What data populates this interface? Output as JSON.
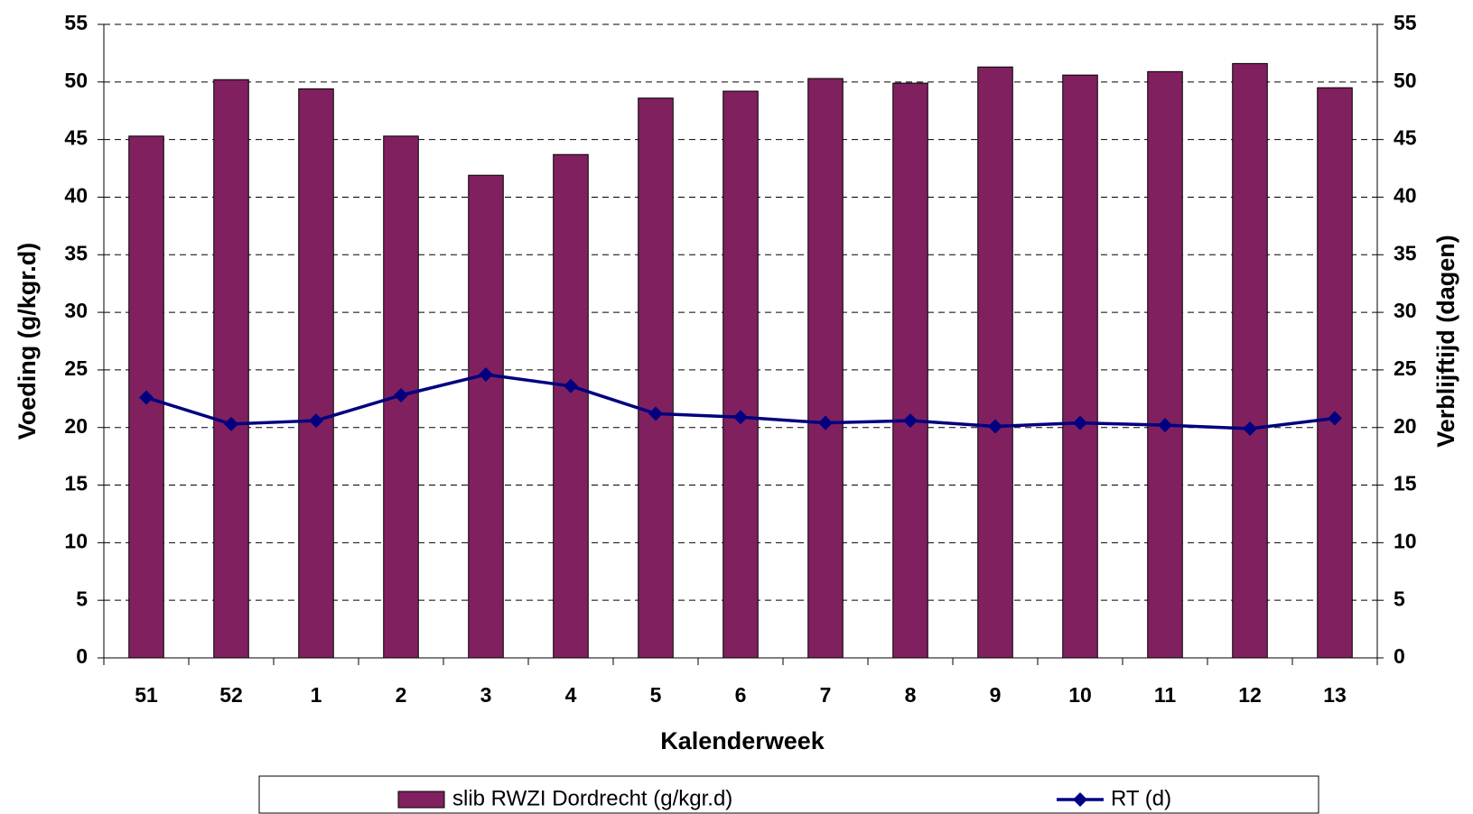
{
  "chart_data": {
    "type": "bar",
    "x_label": "Kalenderweek",
    "y_label": "Voeding (g/kgr.d)",
    "y2_label": "Verblijftijd (dagen)",
    "categories": [
      "51",
      "52",
      "1",
      "2",
      "3",
      "4",
      "5",
      "6",
      "7",
      "8",
      "9",
      "10",
      "11",
      "12",
      "13"
    ],
    "series": [
      {
        "name": "slib RWZI Dordrecht (g/kgr.d)",
        "type": "bar",
        "color": "#80205f",
        "values": [
          45.3,
          50.2,
          49.4,
          45.3,
          41.9,
          43.7,
          48.6,
          49.2,
          50.3,
          49.9,
          51.3,
          50.6,
          50.9,
          51.6,
          49.5
        ]
      },
      {
        "name": "RT (d)",
        "type": "line",
        "axis": "y2",
        "color": "#000080",
        "values": [
          22.6,
          20.3,
          20.6,
          22.8,
          24.6,
          23.6,
          21.2,
          20.9,
          20.4,
          20.6,
          20.1,
          20.4,
          20.2,
          19.9,
          20.8
        ]
      }
    ],
    "ylim": [
      0,
      55
    ],
    "yticks": [
      0,
      5,
      10,
      15,
      20,
      25,
      30,
      35,
      40,
      45,
      50,
      55
    ],
    "y2lim": [
      0,
      55
    ],
    "y2ticks": [
      0,
      5,
      10,
      15,
      20,
      25,
      30,
      35,
      40,
      45,
      50,
      55
    ],
    "grid": true,
    "legend": "bottom"
  }
}
